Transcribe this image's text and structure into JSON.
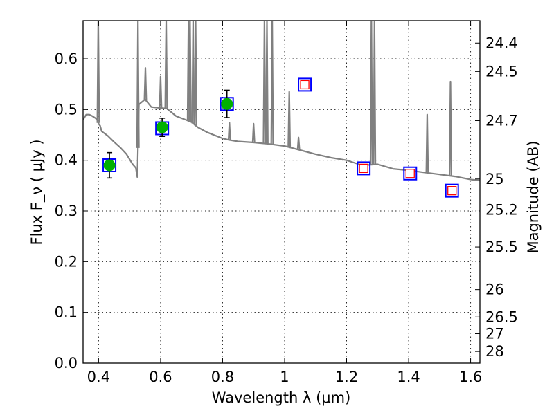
{
  "chart_data": {
    "type": "scatter",
    "xlabel": "Wavelength  λ (μm)",
    "ylabel": "Flux  F_ν  ( μJy )",
    "ylabel_right": "Magnitude (AB)",
    "xlim": [
      0.35,
      1.63
    ],
    "ylim": [
      0.0,
      0.675
    ],
    "grid": true,
    "x_ticks": [
      0.4,
      0.6,
      0.8,
      1.0,
      1.2,
      1.4,
      1.6
    ],
    "x_tick_labels": [
      "0.4",
      "0.6",
      "0.8",
      "1",
      "1.2",
      "1.4",
      "1.6"
    ],
    "y_ticks": [
      0.0,
      0.1,
      0.2,
      0.3,
      0.4,
      0.5,
      0.6
    ],
    "y_tick_labels": [
      "0.0",
      "0.1",
      "0.2",
      "0.3",
      "0.4",
      "0.5",
      "0.6"
    ],
    "right_ticks": [
      {
        "flux": 0.631,
        "label": "24.4"
      },
      {
        "flux": 0.575,
        "label": "24.5"
      },
      {
        "flux": 0.478,
        "label": "24.7"
      },
      {
        "flux": 0.363,
        "label": "25"
      },
      {
        "flux": 0.302,
        "label": "25.2"
      },
      {
        "flux": 0.229,
        "label": "25.5"
      },
      {
        "flux": 0.145,
        "label": "26"
      },
      {
        "flux": 0.091,
        "label": "26.5"
      },
      {
        "flux": 0.058,
        "label": "27"
      },
      {
        "flux": 0.023,
        "label": "28"
      }
    ],
    "series": [
      {
        "name": "model spectrum",
        "kind": "line",
        "color": "#808080",
        "x": [
          0.35,
          0.36,
          0.37,
          0.38,
          0.39,
          0.395,
          0.4,
          0.405,
          0.41,
          0.43,
          0.45,
          0.47,
          0.49,
          0.5,
          0.51,
          0.52,
          0.525,
          0.53,
          0.55,
          0.57,
          0.6,
          0.62,
          0.65,
          0.68,
          0.7,
          0.72,
          0.75,
          0.8,
          0.82,
          0.85,
          0.9,
          0.95,
          1.0,
          1.05,
          1.1,
          1.15,
          1.2,
          1.25,
          1.3,
          1.35,
          1.4,
          1.45,
          1.5,
          1.55,
          1.6,
          1.63
        ],
        "y": [
          0.48,
          0.49,
          0.49,
          0.487,
          0.483,
          0.48,
          0.472,
          0.468,
          0.457,
          0.448,
          0.436,
          0.425,
          0.412,
          0.402,
          0.392,
          0.385,
          0.367,
          0.51,
          0.52,
          0.505,
          0.503,
          0.502,
          0.487,
          0.48,
          0.475,
          0.465,
          0.455,
          0.443,
          0.44,
          0.437,
          0.435,
          0.432,
          0.428,
          0.42,
          0.412,
          0.405,
          0.4,
          0.39,
          0.392,
          0.383,
          0.38,
          0.376,
          0.372,
          0.368,
          0.362,
          0.36
        ]
      },
      {
        "name": "model emission lines",
        "kind": "spikes",
        "color": "#808080",
        "x": [
          0.399,
          0.527,
          0.551,
          0.6,
          0.618,
          0.69,
          0.695,
          0.705,
          0.713,
          0.822,
          0.9,
          0.935,
          0.943,
          0.96,
          1.015,
          1.045,
          1.28,
          1.29,
          1.46,
          1.535
        ],
        "y": [
          0.675,
          0.675,
          0.582,
          0.565,
          0.675,
          0.675,
          0.675,
          0.675,
          0.675,
          0.474,
          0.472,
          0.675,
          0.675,
          0.675,
          0.535,
          0.445,
          0.675,
          0.675,
          0.49,
          0.555
        ]
      },
      {
        "name": "observed photometry",
        "kind": "points",
        "marker": "circle",
        "color": "#00b000",
        "x": [
          0.435,
          0.605,
          0.814
        ],
        "y": [
          0.39,
          0.465,
          0.511
        ],
        "yerr": [
          0.025,
          0.018,
          0.027
        ]
      },
      {
        "name": "model photometry",
        "kind": "points",
        "marker": "square",
        "color": "#0000ff",
        "x": [
          0.435,
          0.605,
          0.814,
          1.065,
          1.255,
          1.405,
          1.54
        ],
        "y": [
          0.39,
          0.463,
          0.511,
          0.549,
          0.384,
          0.374,
          0.34
        ]
      },
      {
        "name": "upper limits",
        "kind": "points",
        "marker": "square",
        "color": "#ff0000",
        "x": [
          1.065,
          1.255,
          1.405,
          1.54
        ],
        "y": [
          0.549,
          0.384,
          0.374,
          0.34
        ]
      }
    ]
  }
}
